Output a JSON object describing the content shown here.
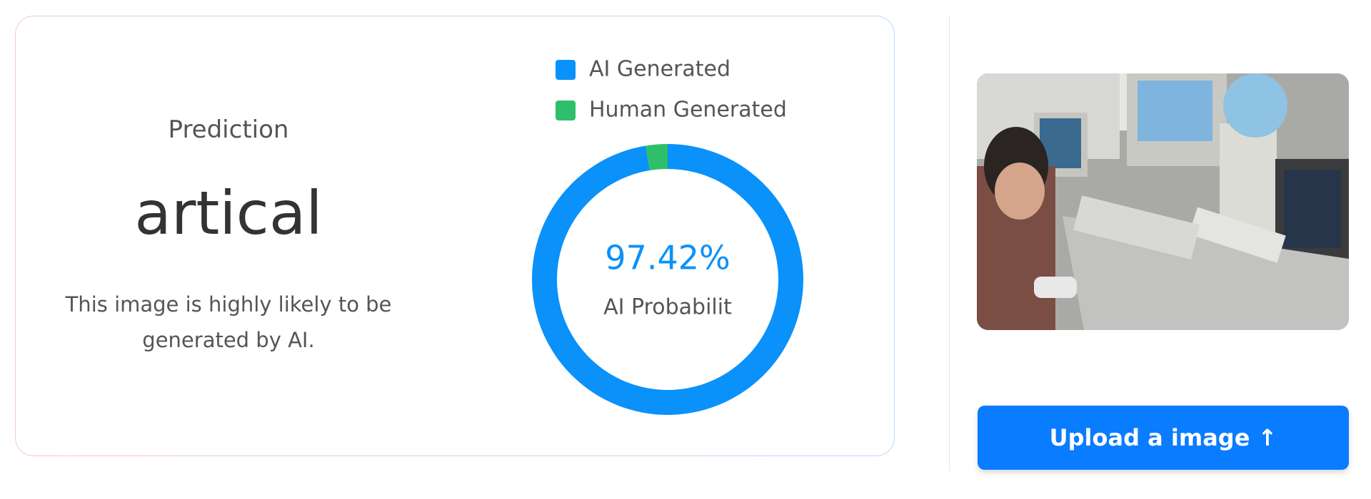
{
  "prediction": {
    "heading": "Prediction",
    "label": "artical",
    "description": "This image is highly likely to be generated by AI."
  },
  "chart_data": {
    "type": "doughnut",
    "categories": [
      "AI Generated",
      "Human Generated"
    ],
    "values": [
      97.42,
      2.58
    ],
    "value_labels": [
      "97.42%",
      null
    ],
    "colors": [
      "#0a91fa",
      "#2ebf6a"
    ],
    "center_text": "AI Probabilit",
    "legend": "top"
  },
  "upload_button": "Upload a image ↑"
}
